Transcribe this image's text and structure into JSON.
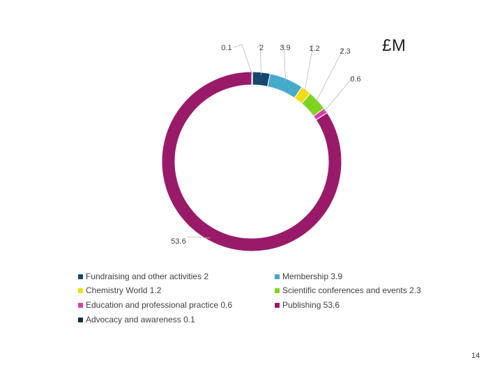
{
  "unit_label": "£M",
  "page_number": "14",
  "chart_data": {
    "type": "pie",
    "style": "donut",
    "title": "",
    "unit": "£M",
    "legend_position": "bottom",
    "slices": [
      {
        "name": "Advocacy and awareness",
        "value": 0.1,
        "label": "0.1",
        "legend": "Advocacy and awareness  0.1",
        "color": "#0d2f4f"
      },
      {
        "name": "Fundraising and other activities",
        "value": 2,
        "label": "2",
        "legend": "Fundraising and other activities  2",
        "color": "#17466e"
      },
      {
        "name": "Membership",
        "value": 3.9,
        "label": "3.9",
        "legend": "Membership 3.9",
        "color": "#46aacb"
      },
      {
        "name": "Chemistry World",
        "value": 1.2,
        "label": "1.2",
        "legend": "Chemistry World 1.2",
        "color": "#f2dc13"
      },
      {
        "name": "Scientific conferences and events",
        "value": 2.3,
        "label": "2.3",
        "legend": "Scientific conferences and events 2.3",
        "color": "#7ed321"
      },
      {
        "name": "Education and professional practice",
        "value": 0.6,
        "label": "0.6",
        "legend": "Education and professional practice 0.6",
        "color": "#d63fa8"
      },
      {
        "name": "Publishing",
        "value": 53.6,
        "label": "53.6",
        "legend": "Publishing 53.6",
        "color": "#9a1a6a"
      }
    ]
  }
}
